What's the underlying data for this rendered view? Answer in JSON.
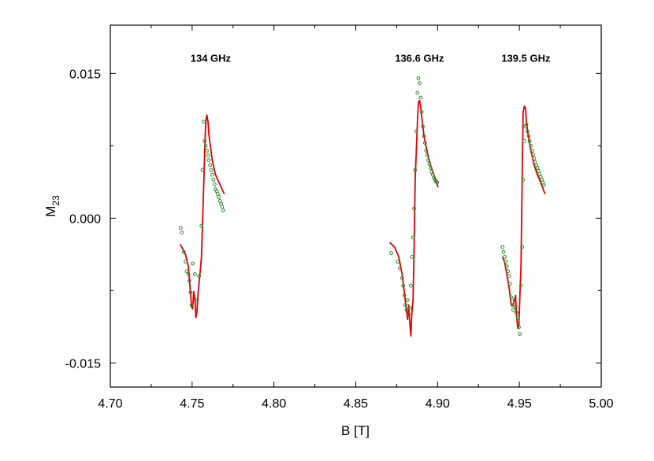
{
  "chart_data": {
    "type": "scatter",
    "title": "",
    "xlabel": "B [T]",
    "ylabel_main": "M",
    "ylabel_sub": "23",
    "xlim": [
      4.7,
      5.0
    ],
    "ylim": [
      -0.0175,
      0.02
    ],
    "x_ticks": [
      4.7,
      4.75,
      4.8,
      4.85,
      4.9,
      4.95,
      5.0
    ],
    "x_tick_labels": [
      "4.70",
      "4.75",
      "4.80",
      "4.85",
      "4.90",
      "4.95",
      "5.00"
    ],
    "y_ticks": [
      0.015,
      0.0,
      -0.015
    ],
    "y_tick_labels": [
      "0.015",
      "0.000",
      "-0.015"
    ],
    "grid": false,
    "colors": {
      "fit_line": "#e00000",
      "data_points": "#2e8b2e",
      "axis": "#000000"
    },
    "annotations": [
      {
        "text": "134 GHz",
        "x": 4.749,
        "y": 0.0162
      },
      {
        "text": "136.6 GHz",
        "x": 4.874,
        "y": 0.0162
      },
      {
        "text": "139.5 GHz",
        "x": 4.939,
        "y": 0.0162
      }
    ],
    "series": [
      {
        "kind": "line",
        "segment": "134 GHz",
        "x": [
          4.7427,
          4.7443,
          4.746,
          4.7477,
          4.749,
          4.7497,
          4.7503,
          4.751,
          4.7517,
          4.7523,
          4.753,
          4.7537,
          4.755,
          4.7557,
          4.757,
          4.7577,
          4.7583,
          4.759,
          4.7597,
          4.7603,
          4.7623,
          4.7643,
          4.767,
          4.7697
        ],
        "y": [
          -0.0027,
          -0.0032,
          -0.0038,
          -0.005,
          -0.0078,
          -0.0092,
          -0.0094,
          -0.0076,
          -0.0084,
          -0.0103,
          -0.0096,
          -0.0076,
          -0.0054,
          -0.004,
          0.003,
          0.007,
          0.01,
          0.0107,
          0.01,
          0.0086,
          0.006,
          0.0045,
          0.0035,
          0.0025
        ]
      },
      {
        "kind": "line",
        "segment": "136.6 GHz",
        "x": [
          4.8707,
          4.8737,
          4.8763,
          4.8783,
          4.8797,
          4.881,
          4.8817,
          4.8823,
          4.883,
          4.8837,
          4.8843,
          4.885,
          4.8857,
          4.8863,
          4.8877,
          4.8883,
          4.889,
          4.8897,
          4.8903,
          4.8917,
          4.8937,
          4.8957,
          4.8977,
          4.9003
        ],
        "y": [
          -0.0025,
          -0.003,
          -0.004,
          -0.0058,
          -0.0077,
          -0.0096,
          -0.0105,
          -0.009,
          -0.0108,
          -0.0122,
          -0.0098,
          -0.0085,
          -0.003,
          0.004,
          0.01,
          0.012,
          0.0122,
          0.0115,
          0.0105,
          0.0085,
          0.0068,
          0.0055,
          0.0045,
          0.0032
        ]
      },
      {
        "kind": "line",
        "segment": "139.5 GHz",
        "x": [
          4.9397,
          4.941,
          4.9423,
          4.9437,
          4.945,
          4.9463,
          4.9477,
          4.9483,
          4.949,
          4.9497,
          4.9503,
          4.951,
          4.9517,
          4.9523,
          4.953,
          4.9537,
          4.9543,
          4.955,
          4.957,
          4.959,
          4.961,
          4.963,
          4.965,
          4.9657
        ],
        "y": [
          -0.004,
          -0.0046,
          -0.0058,
          -0.0072,
          -0.009,
          -0.009,
          -0.008,
          -0.0102,
          -0.0114,
          -0.0112,
          -0.008,
          -0.005,
          0.004,
          0.011,
          0.0116,
          0.0114,
          0.01,
          0.009,
          0.007,
          0.0055,
          0.0045,
          0.0037,
          0.0028,
          0.0025
        ]
      },
      {
        "kind": "points",
        "segment": "134 GHz",
        "x": [
          4.743,
          4.7437,
          4.745,
          4.746,
          4.7467,
          4.7477,
          4.7483,
          4.749,
          4.7497,
          4.7503,
          4.7517,
          4.753,
          4.7543,
          4.7557,
          4.7563,
          4.757,
          4.7577,
          4.7583,
          4.759,
          4.7597,
          4.7603,
          4.761,
          4.7617,
          4.7623,
          4.763,
          4.7637,
          4.7643,
          4.765,
          4.7657,
          4.7663,
          4.767,
          4.7677,
          4.7683,
          4.769
        ],
        "y": [
          -0.001,
          -0.0015,
          -0.0035,
          -0.0045,
          -0.0055,
          -0.0058,
          -0.0065,
          -0.0077,
          -0.009,
          -0.0047,
          -0.0058,
          -0.0085,
          -0.006,
          -0.0008,
          0.005,
          0.01,
          0.008,
          0.0075,
          0.007,
          0.0065,
          0.006,
          0.0055,
          0.005,
          0.0045,
          0.004,
          0.0035,
          0.003,
          0.0028,
          0.0025,
          0.0022,
          0.0018,
          0.0015,
          0.0012,
          0.0008
        ]
      },
      {
        "kind": "points",
        "segment": "136.6 GHz",
        "x": [
          4.8717,
          4.8757,
          4.877,
          4.8783,
          4.879,
          4.8797,
          4.8803,
          4.881,
          4.8817,
          4.8823,
          4.883,
          4.8837,
          4.8843,
          4.885,
          4.8857,
          4.8863,
          4.887,
          4.8877,
          4.8883,
          4.889,
          4.8897,
          4.8903,
          4.891,
          4.8917,
          4.8923,
          4.893,
          4.8937,
          4.8943,
          4.895,
          4.8957,
          4.8963,
          4.897,
          4.8977,
          4.8983,
          4.899,
          4.8997
        ],
        "y": [
          -0.0036,
          -0.0045,
          -0.0052,
          -0.0062,
          -0.007,
          -0.008,
          -0.009,
          -0.0095,
          -0.0085,
          -0.01,
          -0.0093,
          -0.007,
          -0.004,
          -0.002,
          0.001,
          0.005,
          0.009,
          0.013,
          0.0145,
          0.014,
          0.0125,
          0.011,
          0.0095,
          0.0085,
          0.0078,
          0.007,
          0.0065,
          0.006,
          0.0056,
          0.0052,
          0.0048,
          0.0045,
          0.0042,
          0.004,
          0.0038,
          0.0037
        ]
      },
      {
        "kind": "points",
        "segment": "139.5 GHz",
        "x": [
          4.9397,
          4.9403,
          4.941,
          4.9417,
          4.9423,
          4.943,
          4.9437,
          4.9443,
          4.945,
          4.9457,
          4.9463,
          4.947,
          4.9477,
          4.9483,
          4.949,
          4.9497,
          4.9503,
          4.951,
          4.9517,
          4.9523,
          4.953,
          4.9537,
          4.9543,
          4.955,
          4.9557,
          4.9563,
          4.957,
          4.9577,
          4.9583,
          4.959,
          4.9597,
          4.9603,
          4.961,
          4.9617,
          4.9623,
          4.963,
          4.9637,
          4.9643,
          4.965
        ],
        "y": [
          -0.003,
          -0.0035,
          -0.004,
          -0.0045,
          -0.005,
          -0.0055,
          -0.006,
          -0.0068,
          -0.0082,
          -0.009,
          -0.0095,
          -0.0085,
          -0.0092,
          -0.0098,
          -0.0103,
          -0.0113,
          -0.012,
          -0.007,
          -0.003,
          0.004,
          0.008,
          0.0095,
          0.0097,
          0.009,
          0.0085,
          0.008,
          0.0075,
          0.007,
          0.0066,
          0.0062,
          0.0058,
          0.0055,
          0.0052,
          0.0049,
          0.0046,
          0.0043,
          0.004,
          0.0037,
          0.0034
        ]
      }
    ]
  }
}
